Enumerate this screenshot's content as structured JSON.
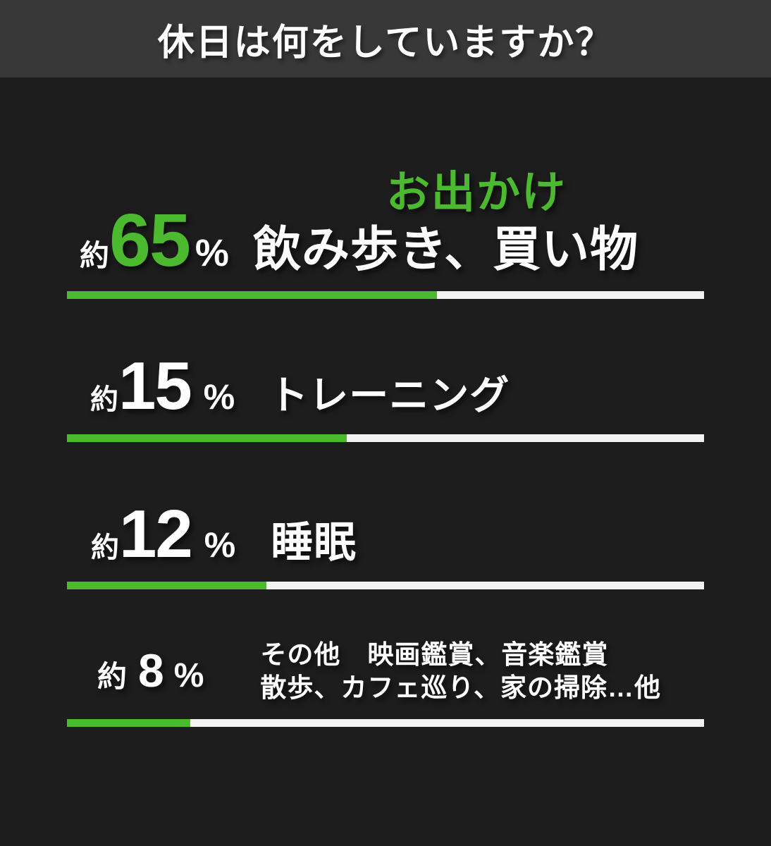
{
  "header": {
    "title": "休日は何をしていますか？"
  },
  "colors": {
    "accent_green": "#4cba2e",
    "page_background": "#1d1d1d",
    "header_background": "#383838",
    "bar_track_white": "#f3f3f3",
    "text_white": "#ffffff"
  },
  "chart_data": {
    "type": "bar",
    "orientation": "horizontal",
    "title": "休日は何をしていますか？",
    "categories": [
      "お出かけ（飲み歩き、買い物）",
      "トレーニング",
      "睡眠",
      "その他（映画鑑賞、音楽鑑賞、散歩、カフェ巡り、家の掃除…他）"
    ],
    "values": [
      65,
      15,
      12,
      8
    ],
    "value_prefix": "約",
    "unit": "%",
    "bar_fill_percent_visual": [
      58.1,
      43.9,
      31.3,
      19.4
    ],
    "xlim": [
      0,
      100
    ],
    "grid": false,
    "legend": false
  },
  "rows": [
    {
      "prefix": "約",
      "value": "65",
      "unit": "%",
      "highlight": "お出かけ",
      "label": "飲み歩き、買い物",
      "bar_fill_percent": 58.1
    },
    {
      "prefix": "約",
      "value": "15",
      "unit": "%",
      "label": "トレーニング",
      "bar_fill_percent": 43.9
    },
    {
      "prefix": "約",
      "value": "12",
      "unit": "%",
      "label": "睡眠",
      "bar_fill_percent": 31.3
    },
    {
      "prefix": "約",
      "value": "8",
      "unit": "%",
      "label_line1": "その他　映画鑑賞、音楽鑑賞",
      "label_line2": "散歩、カフェ巡り、家の掃除…他",
      "bar_fill_percent": 19.4
    }
  ]
}
